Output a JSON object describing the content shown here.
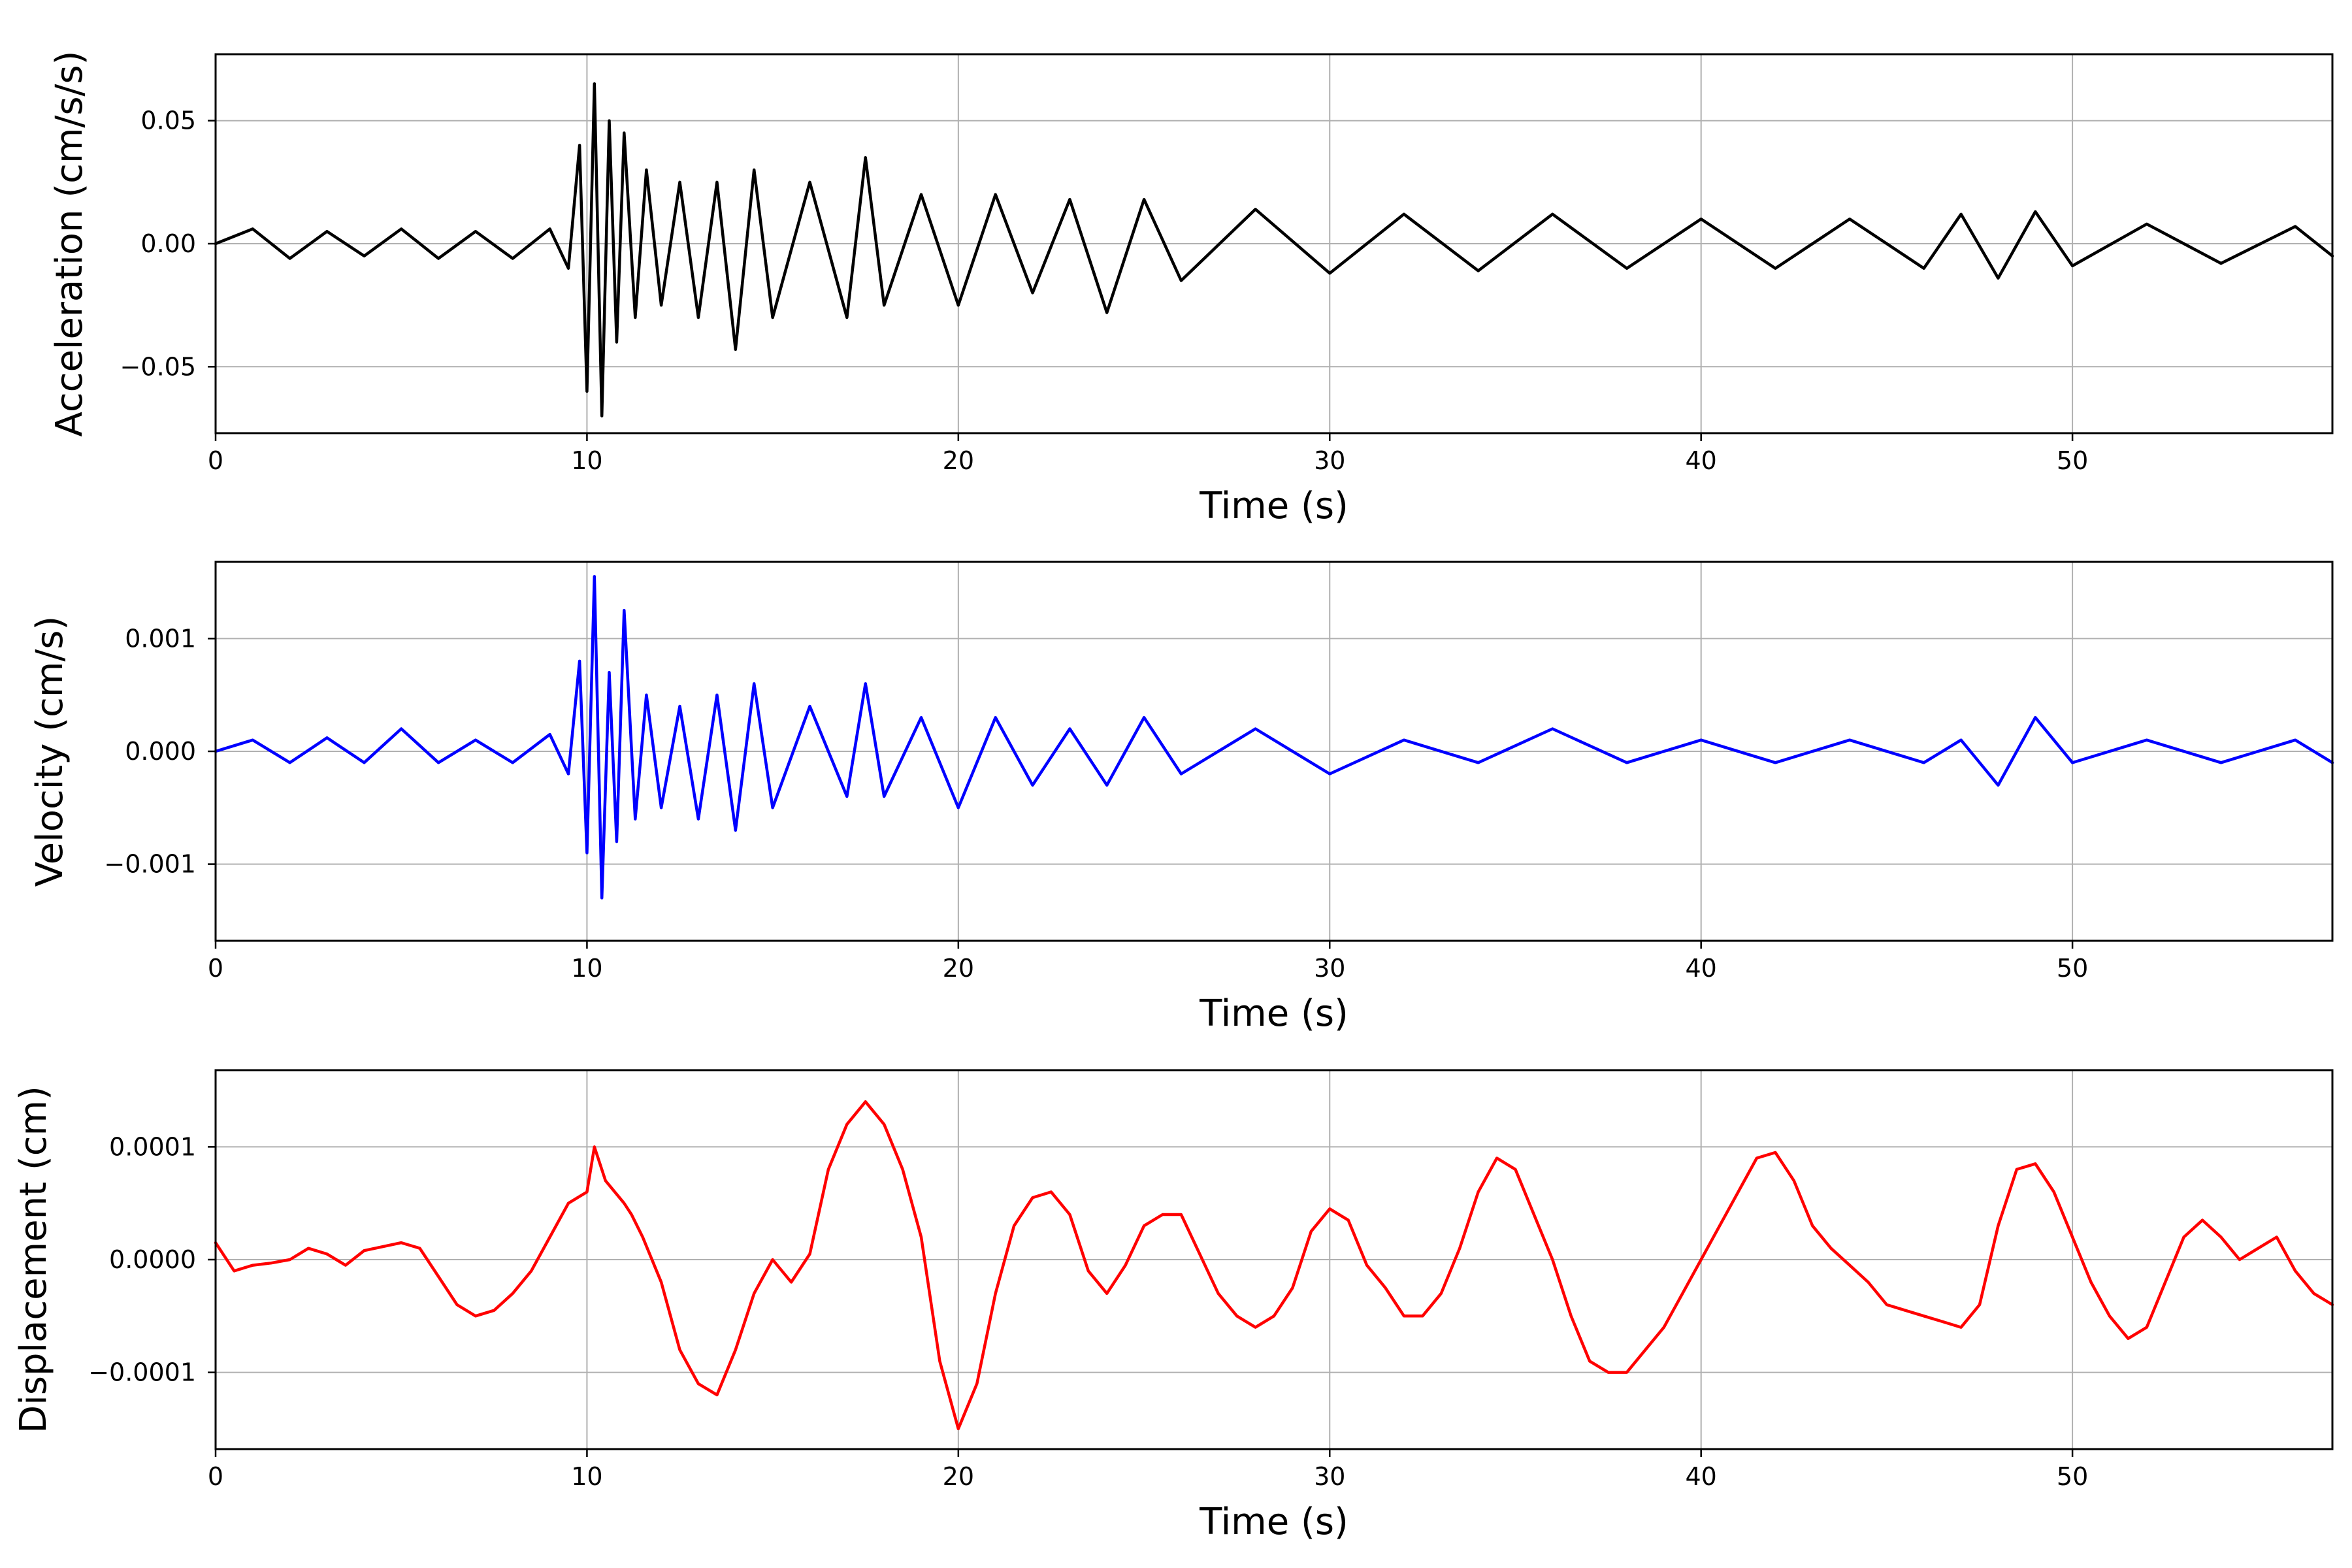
{
  "chart_data": [
    {
      "type": "line",
      "xlabel": "Time (s)",
      "ylabel": "Acceleration (cm/s/s)",
      "xlim": [
        0,
        57
      ],
      "ylim": [
        -0.077,
        0.077
      ],
      "xticks": [
        0,
        10,
        20,
        30,
        40,
        50
      ],
      "xtick_labels": [
        "0",
        "10",
        "20",
        "30",
        "40",
        "50"
      ],
      "yticks": [
        -0.05,
        0.0,
        0.05
      ],
      "ytick_labels": [
        "−0.05",
        "0.00",
        "0.05"
      ],
      "grid": true,
      "color": "#000000",
      "series": [
        {
          "x": [
            0,
            1,
            2,
            3,
            4,
            5,
            6,
            7,
            8,
            9,
            9.5,
            9.8,
            10.0,
            10.2,
            10.4,
            10.6,
            10.8,
            11.0,
            11.3,
            11.6,
            12,
            12.5,
            13,
            13.5,
            14,
            14.5,
            15,
            16,
            17,
            17.5,
            18,
            19,
            20,
            21,
            22,
            23,
            24,
            25,
            26,
            28,
            30,
            32,
            34,
            36,
            38,
            40,
            42,
            44,
            46,
            47,
            48,
            49,
            50,
            52,
            54,
            56,
            57
          ],
          "y": [
            0.0,
            0.006,
            -0.006,
            0.005,
            -0.005,
            0.006,
            -0.006,
            0.005,
            -0.006,
            0.006,
            -0.01,
            0.04,
            -0.06,
            0.065,
            -0.07,
            0.05,
            -0.04,
            0.045,
            -0.03,
            0.03,
            -0.025,
            0.025,
            -0.03,
            0.025,
            -0.043,
            0.03,
            -0.03,
            0.025,
            -0.03,
            0.035,
            -0.025,
            0.02,
            -0.025,
            0.02,
            -0.02,
            0.018,
            -0.028,
            0.018,
            -0.015,
            0.014,
            -0.012,
            0.012,
            -0.011,
            0.012,
            -0.01,
            0.01,
            -0.01,
            0.01,
            -0.01,
            0.012,
            -0.014,
            0.013,
            -0.009,
            0.008,
            -0.008,
            0.007,
            -0.005
          ]
        }
      ]
    },
    {
      "type": "line",
      "xlabel": "Time (s)",
      "ylabel": "Velocity (cm/s)",
      "xlim": [
        0,
        57
      ],
      "ylim": [
        -0.00168,
        0.00168
      ],
      "xticks": [
        0,
        10,
        20,
        30,
        40,
        50
      ],
      "xtick_labels": [
        "0",
        "10",
        "20",
        "30",
        "40",
        "50"
      ],
      "yticks": [
        -0.001,
        0.0,
        0.001
      ],
      "ytick_labels": [
        "−0.001",
        "0.000",
        "0.001"
      ],
      "grid": true,
      "color": "#0000ff",
      "series": [
        {
          "x": [
            0,
            1,
            2,
            3,
            4,
            5,
            6,
            7,
            8,
            9,
            9.5,
            9.8,
            10.0,
            10.2,
            10.4,
            10.6,
            10.8,
            11.0,
            11.3,
            11.6,
            12,
            12.5,
            13,
            13.5,
            14,
            14.5,
            15,
            16,
            17,
            17.5,
            18,
            19,
            20,
            21,
            22,
            23,
            24,
            25,
            26,
            28,
            30,
            32,
            34,
            36,
            38,
            40,
            42,
            44,
            46,
            47,
            48,
            49,
            50,
            52,
            54,
            56,
            57
          ],
          "y": [
            0.0,
            0.0001,
            -0.0001,
            0.00012,
            -0.0001,
            0.0002,
            -0.0001,
            0.0001,
            -0.0001,
            0.00015,
            -0.0002,
            0.0008,
            -0.0009,
            0.00155,
            -0.0013,
            0.0007,
            -0.0008,
            0.00125,
            -0.0006,
            0.0005,
            -0.0005,
            0.0004,
            -0.0006,
            0.0005,
            -0.0007,
            0.0006,
            -0.0005,
            0.0004,
            -0.0004,
            0.0006,
            -0.0004,
            0.0003,
            -0.0005,
            0.0003,
            -0.0003,
            0.0002,
            -0.0003,
            0.0003,
            -0.0002,
            0.0002,
            -0.0002,
            0.0001,
            -0.0001,
            0.0002,
            -0.0001,
            0.0001,
            -0.0001,
            0.0001,
            -0.0001,
            0.0001,
            -0.0003,
            0.0003,
            -0.0001,
            0.0001,
            -0.0001,
            0.0001,
            -0.0001
          ]
        }
      ]
    },
    {
      "type": "line",
      "xlabel": "Time (s)",
      "ylabel": "Displacement (cm)",
      "xlim": [
        0,
        57
      ],
      "ylim": [
        -0.000168,
        0.000168
      ],
      "xticks": [
        0,
        10,
        20,
        30,
        40,
        50
      ],
      "xtick_labels": [
        "0",
        "10",
        "20",
        "30",
        "40",
        "50"
      ],
      "yticks": [
        -0.0001,
        0.0,
        0.0001
      ],
      "ytick_labels": [
        "−0.0001",
        "0.0000",
        "0.0001"
      ],
      "grid": true,
      "color": "#ff0000",
      "series": [
        {
          "x": [
            0,
            0.5,
            1,
            1.5,
            2,
            2.5,
            3,
            3.5,
            4,
            5,
            5.5,
            6,
            6.5,
            7,
            7.5,
            8,
            8.5,
            9,
            9.5,
            10,
            10.2,
            10.5,
            11,
            11.2,
            11.5,
            12,
            12.5,
            13,
            13.5,
            14,
            14.5,
            15,
            15.5,
            16,
            16.5,
            17,
            17.5,
            18,
            18.5,
            19,
            19.5,
            20,
            20.5,
            21,
            21.5,
            22,
            22.5,
            23,
            23.5,
            24,
            24.5,
            25,
            25.5,
            26,
            26.5,
            27,
            27.5,
            28,
            28.5,
            29,
            29.5,
            30,
            30.5,
            31,
            31.5,
            32,
            32.5,
            33,
            33.5,
            34,
            34.5,
            35,
            35.5,
            36,
            36.5,
            37,
            37.5,
            38,
            38.5,
            39,
            39.5,
            40,
            40.5,
            41,
            41.5,
            42,
            42.5,
            43,
            43.5,
            44,
            44.5,
            45,
            45.5,
            46,
            46.5,
            47,
            47.5,
            48,
            48.5,
            49,
            49.5,
            50,
            50.5,
            51,
            51.5,
            52,
            52.5,
            53,
            53.5,
            54,
            54.5,
            55,
            55.5,
            56,
            56.5,
            57
          ],
          "y": [
            1.5e-05,
            -1e-05,
            -5e-06,
            -3e-06,
            0.0,
            1e-05,
            5e-06,
            -5e-06,
            8e-06,
            1.5e-05,
            1e-05,
            -1.5e-05,
            -4e-05,
            -5e-05,
            -4.5e-05,
            -3e-05,
            -1e-05,
            2e-05,
            5e-05,
            6e-05,
            0.0001,
            7e-05,
            5e-05,
            4e-05,
            2e-05,
            -2e-05,
            -8e-05,
            -0.00011,
            -0.00012,
            -8e-05,
            -3e-05,
            0.0,
            -2e-05,
            5e-06,
            8e-05,
            0.00012,
            0.00014,
            0.00012,
            8e-05,
            2e-05,
            -9e-05,
            -0.00015,
            -0.00011,
            -3e-05,
            3e-05,
            5.5e-05,
            6e-05,
            4e-05,
            -1e-05,
            -3e-05,
            -5e-06,
            3e-05,
            4e-05,
            4e-05,
            5e-06,
            -3e-05,
            -5e-05,
            -6e-05,
            -5e-05,
            -2.5e-05,
            2.5e-05,
            4.5e-05,
            3.5e-05,
            -5e-06,
            -2.5e-05,
            -5e-05,
            -5e-05,
            -3e-05,
            1e-05,
            6e-05,
            9e-05,
            8e-05,
            4e-05,
            0.0,
            -5e-05,
            -9e-05,
            -0.0001,
            -0.0001,
            -8e-05,
            -6e-05,
            -3e-05,
            0.0,
            3e-05,
            6e-05,
            9e-05,
            9.5e-05,
            7e-05,
            3e-05,
            1e-05,
            -5e-06,
            -2e-05,
            -4e-05,
            -4.5e-05,
            -5e-05,
            -5.5e-05,
            -6e-05,
            -4e-05,
            3e-05,
            8e-05,
            8.5e-05,
            6e-05,
            2e-05,
            -2e-05,
            -5e-05,
            -7e-05,
            -6e-05,
            -2e-05,
            2e-05,
            3.5e-05,
            2e-05,
            0.0,
            1e-05,
            2e-05,
            -1e-05,
            -3e-05,
            -4e-05
          ]
        }
      ]
    }
  ]
}
